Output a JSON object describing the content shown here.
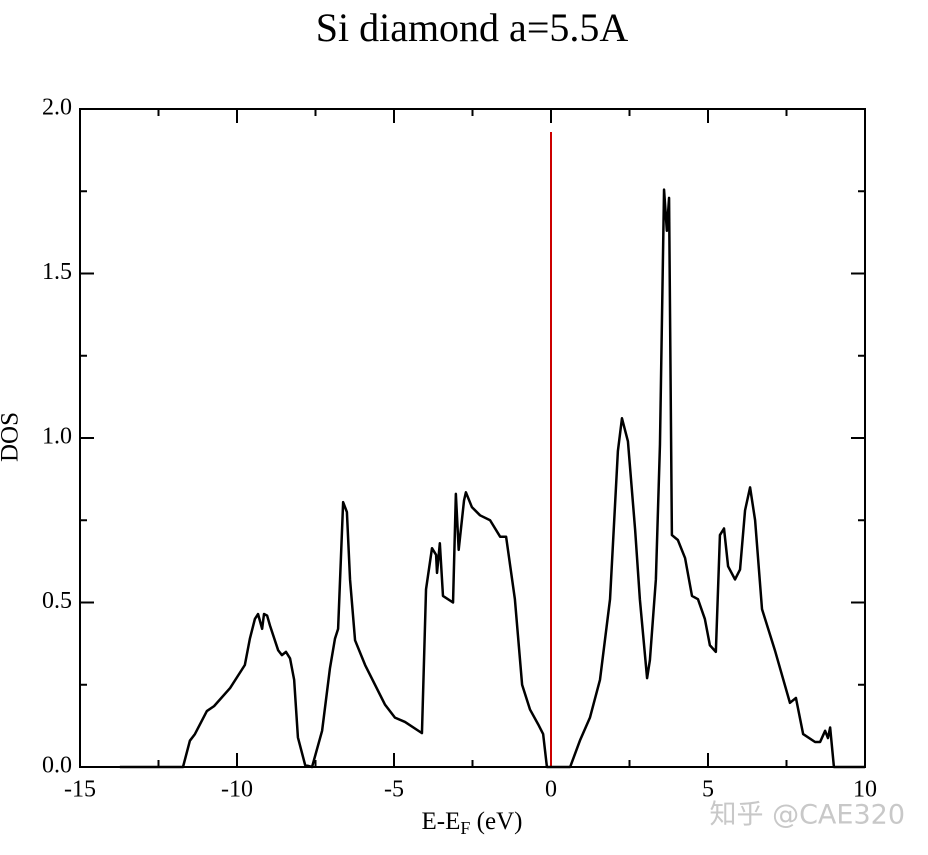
{
  "chart_data": {
    "type": "line",
    "title": "Si diamond a=5.5A",
    "xlabel": [
      "E-E",
      "F",
      " (eV)"
    ],
    "ylabel": "DOS",
    "xlim": [
      -15,
      10
    ],
    "ylim": [
      0,
      2
    ],
    "xticks": [
      -15,
      -10,
      -5,
      0,
      5,
      10
    ],
    "xticks_minor": [
      -12.5,
      -7.5,
      -2.5,
      2.5,
      7.5
    ],
    "yticks": [
      {
        "value": 0,
        "label": "0.0"
      },
      {
        "value": 0.5,
        "label": "0.5"
      },
      {
        "value": 1,
        "label": "1.0"
      },
      {
        "value": 1.5,
        "label": "1.5"
      },
      {
        "value": 2,
        "label": "2.0"
      }
    ],
    "yticks_minor": [
      0.25,
      0.75,
      1.25,
      1.75
    ],
    "series": [
      {
        "color": "#000000",
        "x": [
          -13.73,
          -11.72,
          -11.5,
          -11.34,
          -10.96,
          -10.73,
          -10.22,
          -9.75,
          -9.59,
          -9.43,
          -9.33,
          -9.2,
          -9.14,
          -9.04,
          -8.95,
          -8.69,
          -8.57,
          -8.44,
          -8.31,
          -8.18,
          -8.06,
          -7.83,
          -7.61,
          -7.29,
          -7.04,
          -6.88,
          -6.78,
          -6.62,
          -6.5,
          -6.4,
          -6.24,
          -5.92,
          -5.29,
          -4.97,
          -4.65,
          -4.11,
          -3.98,
          -3.79,
          -3.66,
          -3.63,
          -3.54,
          -3.44,
          -3.12,
          -3.03,
          -2.94,
          -2.77,
          -2.71,
          -2.52,
          -2.26,
          -1.94,
          -1.62,
          -1.43,
          -1.15,
          -0.92,
          -0.67,
          -0.41,
          -0.25,
          -0.13,
          0.61,
          0.92,
          1.24,
          1.56,
          1.88,
          2.13,
          2.26,
          2.45,
          2.68,
          2.83,
          3.06,
          3.15,
          3.34,
          3.47,
          3.6,
          3.69,
          3.76,
          3.85,
          4.04,
          4.27,
          4.49,
          4.68,
          4.9,
          5.06,
          5.25,
          5.38,
          5.51,
          5.64,
          5.86,
          6.02,
          6.18,
          6.34,
          6.5,
          6.72,
          7.13,
          7.61,
          7.8,
          8.03,
          8.41,
          8.57,
          8.73,
          8.82,
          8.89,
          9.01,
          10.0
        ],
        "values": [
          0,
          0,
          0.08,
          0.1,
          0.17,
          0.185,
          0.24,
          0.31,
          0.39,
          0.45,
          0.465,
          0.42,
          0.465,
          0.46,
          0.43,
          0.355,
          0.34,
          0.35,
          0.33,
          0.265,
          0.09,
          0.006,
          0,
          0.11,
          0.3,
          0.39,
          0.42,
          0.805,
          0.775,
          0.57,
          0.385,
          0.31,
          0.19,
          0.15,
          0.137,
          0.103,
          0.54,
          0.665,
          0.645,
          0.59,
          0.68,
          0.52,
          0.5,
          0.83,
          0.66,
          0.81,
          0.835,
          0.79,
          0.765,
          0.75,
          0.7,
          0.7,
          0.51,
          0.25,
          0.175,
          0.13,
          0.1,
          0,
          0,
          0.08,
          0.15,
          0.265,
          0.51,
          0.96,
          1.06,
          0.99,
          0.72,
          0.51,
          0.27,
          0.325,
          0.57,
          0.98,
          1.755,
          1.63,
          1.73,
          0.705,
          0.69,
          0.635,
          0.52,
          0.51,
          0.45,
          0.37,
          0.35,
          0.705,
          0.725,
          0.61,
          0.57,
          0.6,
          0.78,
          0.85,
          0.75,
          0.48,
          0.355,
          0.195,
          0.21,
          0.1,
          0.076,
          0.076,
          0.11,
          0.088,
          0.12,
          0,
          0
        ]
      }
    ],
    "vlines": [
      {
        "x": 0,
        "y_end": 1.93,
        "color": "#cc0000"
      }
    ]
  },
  "watermark": "知乎 @CAE320"
}
